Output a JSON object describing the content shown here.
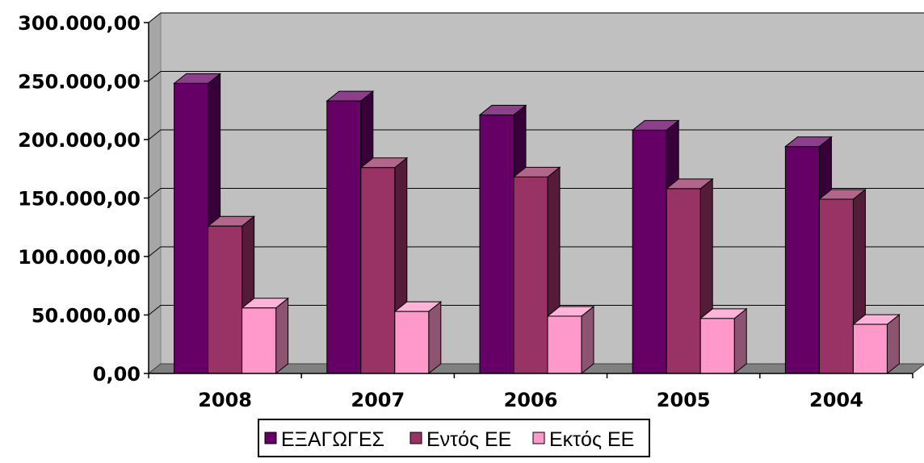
{
  "chart_data": {
    "type": "bar",
    "style": "3d-clustered-column",
    "categories": [
      "2008",
      "2007",
      "2006",
      "2005",
      "2004"
    ],
    "series": [
      {
        "name": "ΕΞΑΓΩΓΕΣ",
        "values": [
          248000,
          233000,
          221000,
          208000,
          194000
        ],
        "color": "#660066"
      },
      {
        "name": "Εντός ΕΕ",
        "values": [
          126000,
          176000,
          168000,
          158000,
          149000
        ],
        "color": "#993366"
      },
      {
        "name": "Εκτός ΕΕ",
        "values": [
          56000,
          53000,
          49000,
          47000,
          42000
        ],
        "color": "#ff99cc"
      }
    ],
    "ylim": [
      0,
      300000
    ],
    "yticks": [
      "0,00",
      "50.000,00",
      "100.000,00",
      "150.000,00",
      "200.000,00",
      "250.000,00",
      "300.000,00"
    ],
    "grid": true,
    "legend_position": "bottom",
    "colors": {
      "plot_background": "#c0c0c0",
      "floor": "#808080",
      "gridline": "#000000"
    }
  }
}
